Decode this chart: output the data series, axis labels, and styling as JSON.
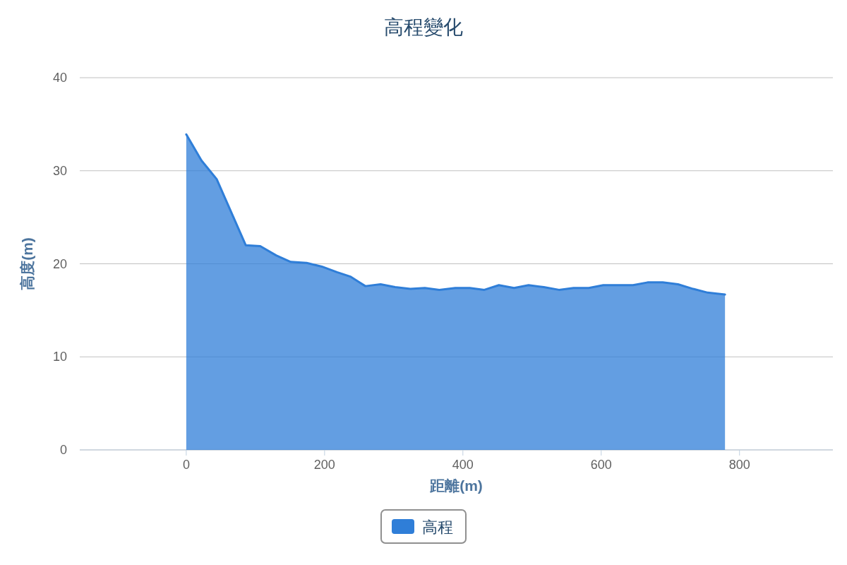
{
  "chart_data": {
    "type": "area",
    "title": "高程變化",
    "xlabel": "距離(m)",
    "ylabel": "高度(m)",
    "series": [
      {
        "name": "高程",
        "color": "#2f7ed8",
        "x": [
          0,
          22,
          44,
          86,
          107,
          130,
          151,
          174,
          196,
          218,
          238,
          259,
          281,
          302,
          324,
          345,
          366,
          389,
          410,
          431,
          452,
          474,
          495,
          517,
          539,
          560,
          582,
          603,
          625,
          646,
          667,
          689,
          711,
          733,
          754,
          779
        ],
        "values": [
          33.9,
          31.1,
          29.1,
          22.0,
          21.9,
          20.9,
          20.2,
          20.1,
          19.7,
          19.1,
          18.6,
          17.6,
          17.8,
          17.5,
          17.3,
          17.4,
          17.2,
          17.4,
          17.4,
          17.2,
          17.7,
          17.4,
          17.7,
          17.5,
          17.2,
          17.4,
          17.4,
          17.7,
          17.7,
          17.7,
          18.0,
          18.0,
          17.8,
          17.3,
          16.9,
          16.7
        ]
      }
    ],
    "xlim": [
      -154,
      935
    ],
    "xticks": [
      0,
      200,
      400,
      600,
      800
    ],
    "ylim": [
      0,
      40
    ],
    "yticks": [
      0,
      10,
      20,
      30,
      40
    ],
    "grid": "y",
    "legend": "bottom"
  }
}
